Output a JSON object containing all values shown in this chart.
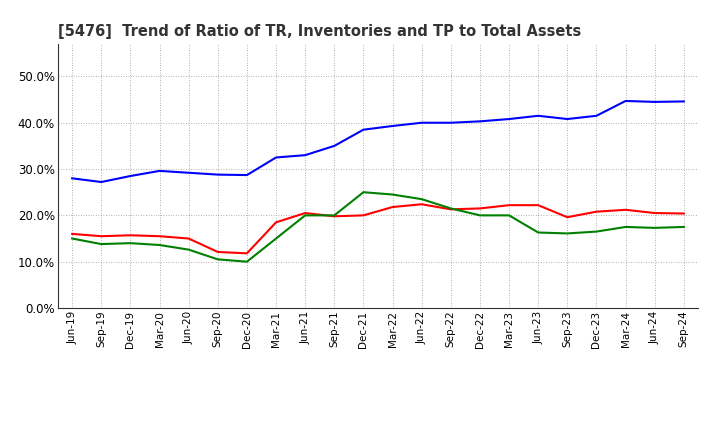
{
  "title": "[5476]  Trend of Ratio of TR, Inventories and TP to Total Assets",
  "x_labels": [
    "Jun-19",
    "Sep-19",
    "Dec-19",
    "Mar-20",
    "Jun-20",
    "Sep-20",
    "Dec-20",
    "Mar-21",
    "Jun-21",
    "Sep-21",
    "Dec-21",
    "Mar-22",
    "Jun-22",
    "Sep-22",
    "Dec-22",
    "Mar-23",
    "Jun-23",
    "Sep-23",
    "Dec-23",
    "Mar-24",
    "Jun-24",
    "Sep-24"
  ],
  "trade_receivables": [
    0.16,
    0.155,
    0.157,
    0.155,
    0.15,
    0.121,
    0.118,
    0.185,
    0.205,
    0.198,
    0.2,
    0.218,
    0.224,
    0.213,
    0.215,
    0.222,
    0.222,
    0.196,
    0.208,
    0.212,
    0.205,
    0.204
  ],
  "inventories": [
    0.28,
    0.272,
    0.285,
    0.296,
    0.292,
    0.288,
    0.287,
    0.325,
    0.33,
    0.35,
    0.385,
    0.393,
    0.4,
    0.4,
    0.403,
    0.408,
    0.415,
    0.408,
    0.415,
    0.447,
    0.445,
    0.446
  ],
  "trade_payables": [
    0.15,
    0.138,
    0.14,
    0.136,
    0.126,
    0.105,
    0.1,
    0.15,
    0.2,
    0.2,
    0.25,
    0.245,
    0.235,
    0.215,
    0.2,
    0.2,
    0.163,
    0.161,
    0.165,
    0.175,
    0.173,
    0.175
  ],
  "tr_color": "#ff0000",
  "inv_color": "#0000ff",
  "tp_color": "#008000",
  "ylim": [
    0.0,
    0.57
  ],
  "yticks": [
    0.0,
    0.1,
    0.2,
    0.3,
    0.4,
    0.5
  ],
  "background_color": "#ffffff",
  "grid_color": "#999999"
}
